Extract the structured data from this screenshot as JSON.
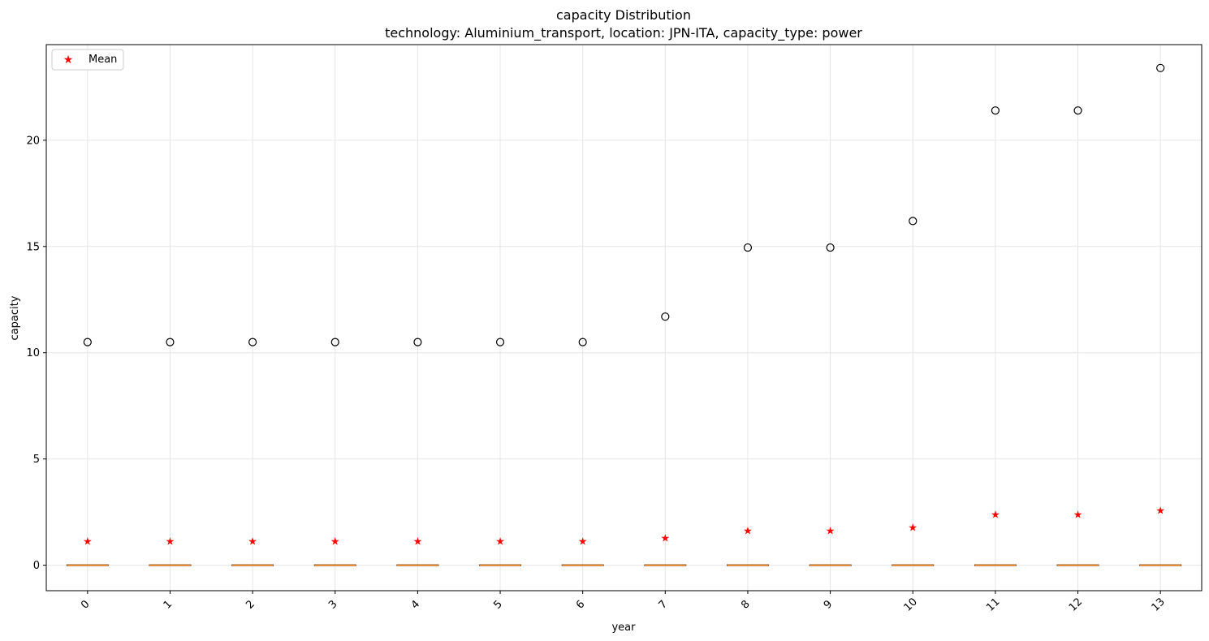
{
  "chart_data": {
    "type": "box",
    "title": "capacity Distribution",
    "subtitle": "technology: Aluminium_transport, location: JPN-ITA, capacity_type: power",
    "xlabel": "year",
    "ylabel": "capacity",
    "categories": [
      "0",
      "1",
      "2",
      "3",
      "4",
      "5",
      "6",
      "7",
      "8",
      "9",
      "10",
      "11",
      "12",
      "13"
    ],
    "ylim": [
      -1.2,
      24.5
    ],
    "yticks": [
      0,
      5,
      10,
      15,
      20
    ],
    "grid": true,
    "legend": {
      "position": "top-left",
      "entries": [
        "Mean"
      ]
    },
    "series": [
      {
        "name": "Mean",
        "values": [
          1.15,
          1.15,
          1.15,
          1.15,
          1.15,
          1.15,
          1.15,
          1.3,
          1.65,
          1.65,
          1.8,
          2.4,
          2.4,
          2.6
        ]
      }
    ],
    "median": [
      0,
      0,
      0,
      0,
      0,
      0,
      0,
      0,
      0,
      0,
      0,
      0,
      0,
      0
    ],
    "q1": [
      0,
      0,
      0,
      0,
      0,
      0,
      0,
      0,
      0,
      0,
      0,
      0,
      0,
      0
    ],
    "q3": [
      0,
      0,
      0,
      0,
      0,
      0,
      0,
      0,
      0,
      0,
      0,
      0,
      0,
      0
    ],
    "outliers": [
      10.5,
      10.5,
      10.5,
      10.5,
      10.5,
      10.5,
      10.5,
      11.7,
      14.95,
      14.95,
      16.2,
      21.4,
      21.4,
      23.4
    ],
    "colors": {
      "box": "#000000",
      "median": "#ff7f0e",
      "mean": "#ff0000",
      "outlier": "#000000",
      "grid": "#e6e6e6"
    }
  }
}
